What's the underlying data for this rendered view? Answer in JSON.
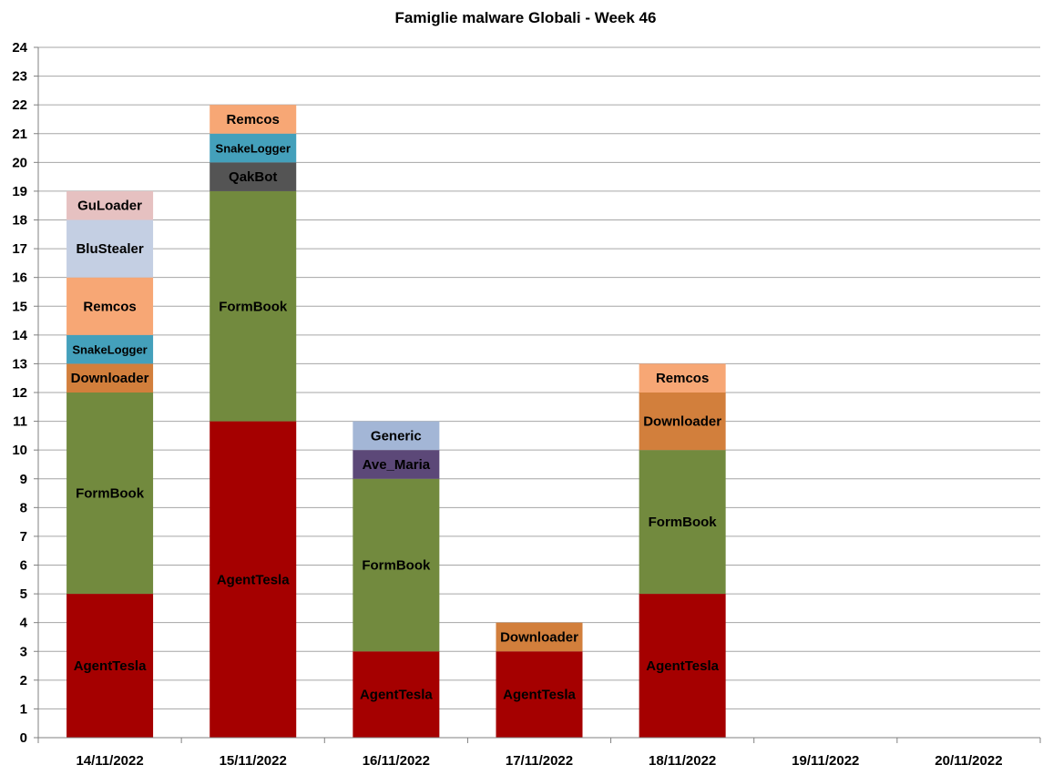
{
  "chart_data": {
    "type": "bar",
    "stacked": true,
    "title": "Famiglie malware Globali - Week 46",
    "xlabel": "",
    "ylabel": "",
    "ylim": [
      0,
      24
    ],
    "yticks": [
      0,
      1,
      2,
      3,
      4,
      5,
      6,
      7,
      8,
      9,
      10,
      11,
      12,
      13,
      14,
      15,
      16,
      17,
      18,
      19,
      20,
      21,
      22,
      23,
      24
    ],
    "grid": true,
    "legend": "none",
    "categories": [
      "14/11/2022",
      "15/11/2022",
      "16/11/2022",
      "17/11/2022",
      "18/11/2022",
      "19/11/2022",
      "20/11/2022"
    ],
    "colors": {
      "AgentTesla": "#a50000",
      "FormBook": "#728a3e",
      "Downloader": "#d27f3c",
      "SnakeLogger": "#44a0bb",
      "Remcos": "#f7a775",
      "BluStealer": "#c4cfe3",
      "GuLoader": "#e6c1c1",
      "QakBot": "#545454",
      "Ave_Maria": "#5c4878",
      "Generic": "#a3b6d6"
    },
    "stacks": [
      [
        {
          "name": "AgentTesla",
          "value": 5
        },
        {
          "name": "FormBook",
          "value": 7
        },
        {
          "name": "Downloader",
          "value": 1
        },
        {
          "name": "SnakeLogger",
          "value": 1
        },
        {
          "name": "Remcos",
          "value": 2
        },
        {
          "name": "BluStealer",
          "value": 2
        },
        {
          "name": "GuLoader",
          "value": 1
        }
      ],
      [
        {
          "name": "AgentTesla",
          "value": 11
        },
        {
          "name": "FormBook",
          "value": 8
        },
        {
          "name": "QakBot",
          "value": 1
        },
        {
          "name": "SnakeLogger",
          "value": 1
        },
        {
          "name": "Remcos",
          "value": 1
        }
      ],
      [
        {
          "name": "AgentTesla",
          "value": 3
        },
        {
          "name": "FormBook",
          "value": 6
        },
        {
          "name": "Ave_Maria",
          "value": 1
        },
        {
          "name": "Generic",
          "value": 1
        }
      ],
      [
        {
          "name": "AgentTesla",
          "value": 3
        },
        {
          "name": "Downloader",
          "value": 1
        }
      ],
      [
        {
          "name": "AgentTesla",
          "value": 5
        },
        {
          "name": "FormBook",
          "value": 5
        },
        {
          "name": "Downloader",
          "value": 2
        },
        {
          "name": "Remcos",
          "value": 1
        }
      ],
      [],
      []
    ]
  }
}
